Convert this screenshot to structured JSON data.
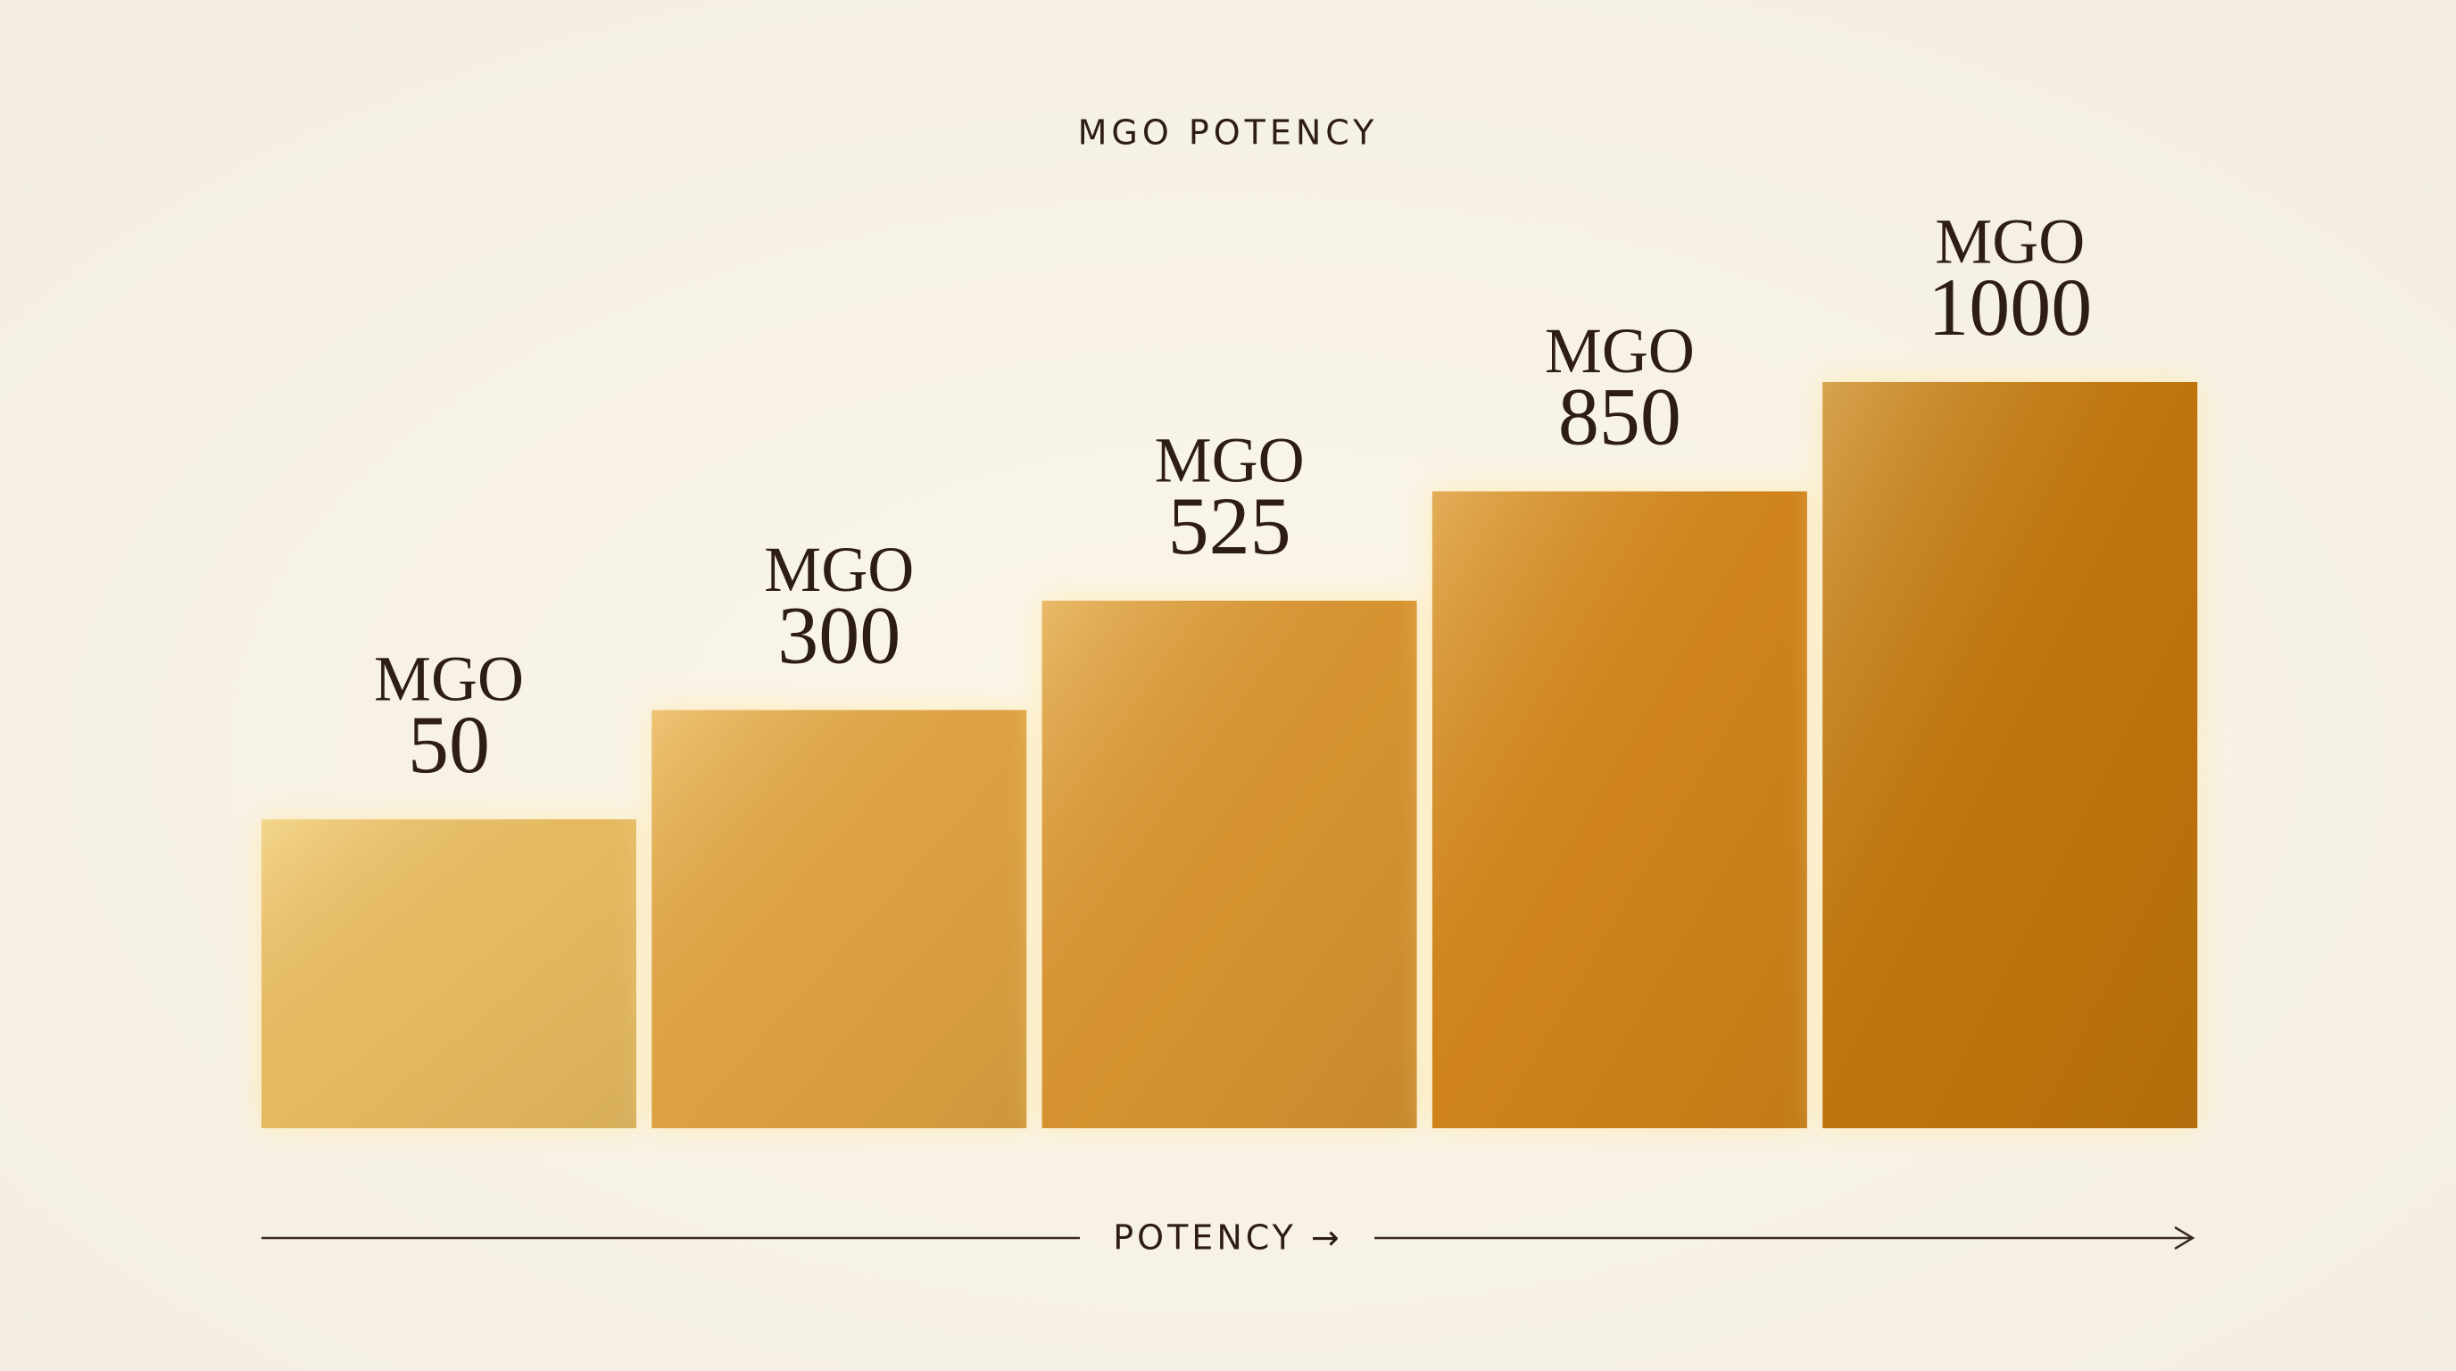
{
  "chart_data": {
    "type": "bar",
    "title": "MGO POTENCY",
    "x_label": "POTENCY →",
    "unit": "MGO",
    "values": [
      50,
      300,
      525,
      850,
      1000
    ],
    "colors": [
      "#edc66c",
      "#e4ab48",
      "#dc9a34",
      "#d4881d",
      "#c17810"
    ]
  }
}
